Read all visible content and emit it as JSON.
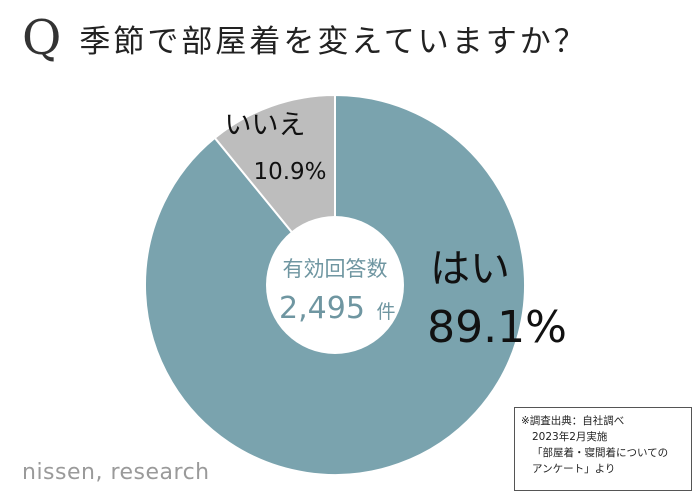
{
  "header": {
    "q_mark": "Q",
    "question": "季節で部屋着を変えていますか？"
  },
  "chart_data": {
    "type": "pie",
    "donut": true,
    "colors": [
      "#7aa3ae",
      "#bdbdbd"
    ],
    "center_label": "有効回答数",
    "total_value": "2,495",
    "total_unit": "件",
    "slices": [
      {
        "label": "はい",
        "value": 89.1,
        "value_label": "89.1%",
        "color": "#7aa3ae"
      },
      {
        "label": "いいえ",
        "value": 10.9,
        "value_label": "10.9%",
        "color": "#bdbdbd"
      }
    ]
  },
  "source": {
    "line1": "※調査出典：自社調べ",
    "line2": "2023年2月実施",
    "line3": "「部屋着・寝間着についての",
    "line4": "アンケート」より"
  },
  "logo": {
    "text": "nissen, research"
  }
}
